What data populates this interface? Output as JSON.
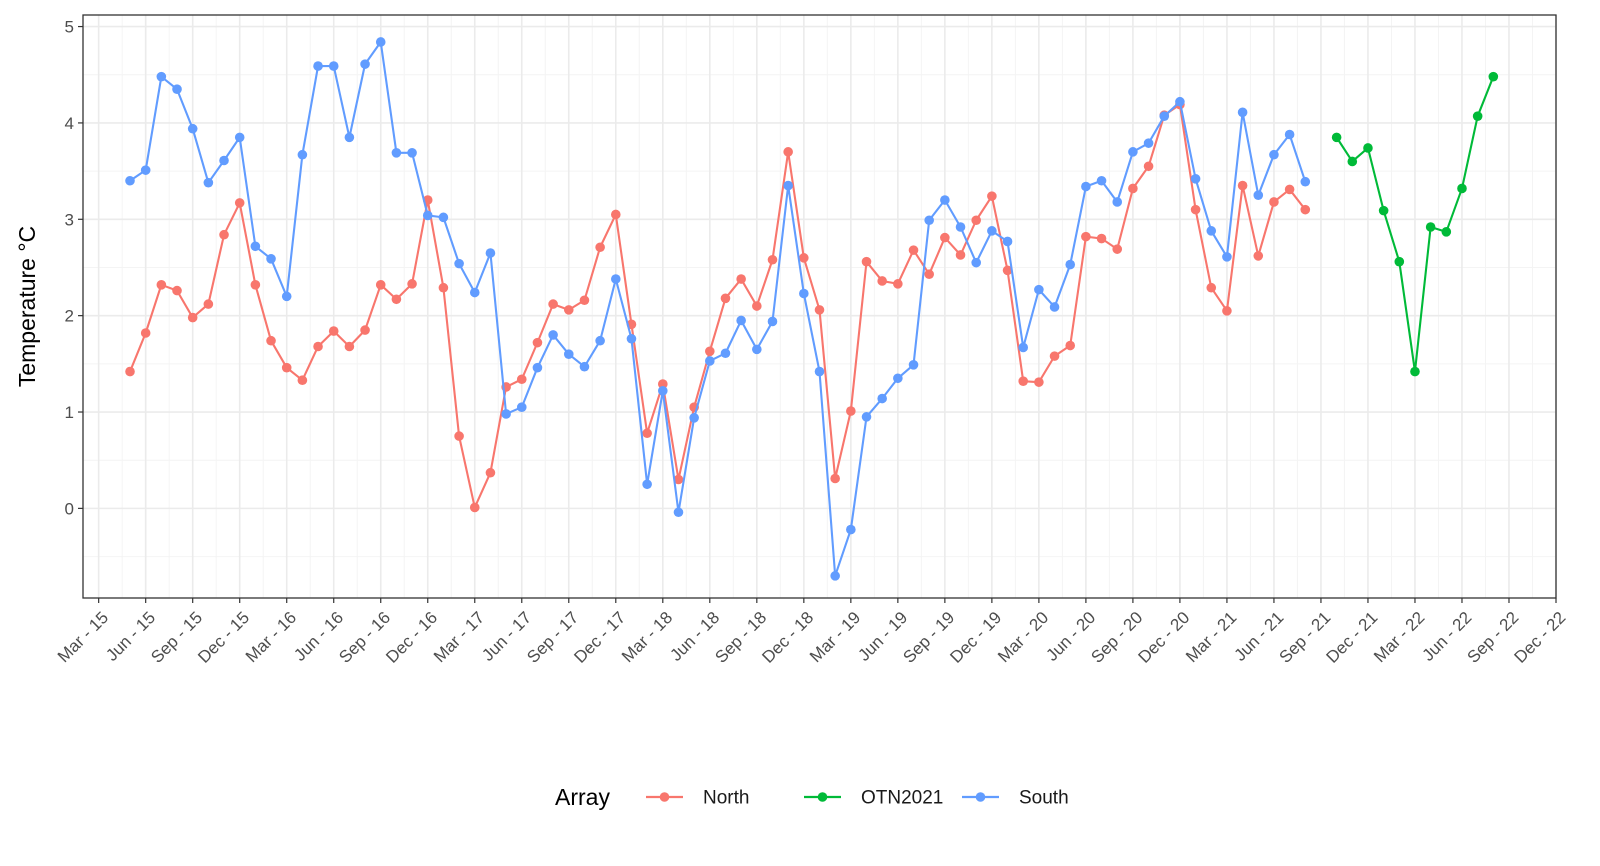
{
  "chart_data": {
    "type": "line",
    "ylabel": "Temperature °C",
    "ylim": [
      -0.93,
      5.12
    ],
    "y_ticks": [
      0,
      1,
      2,
      3,
      4,
      5
    ],
    "x_range": [
      "2015-02-15",
      "2022-12-15"
    ],
    "x_tick_labels": [
      "Mar - 15",
      "Jun - 15",
      "Sep - 15",
      "Dec - 15",
      "Mar - 16",
      "Jun - 16",
      "Sep - 16",
      "Dec - 16",
      "Mar - 17",
      "Jun - 17",
      "Sep - 17",
      "Dec - 17",
      "Mar - 18",
      "Jun - 18",
      "Sep - 18",
      "Dec - 18",
      "Mar - 19",
      "Jun - 19",
      "Sep - 19",
      "Dec - 19",
      "Mar - 20",
      "Jun - 20",
      "Sep - 20",
      "Dec - 20",
      "Mar - 21",
      "Jun - 21",
      "Sep - 21",
      "Dec - 21",
      "Mar - 22",
      "Jun - 22",
      "Sep - 22",
      "Dec - 22"
    ],
    "grid": true,
    "legend": {
      "title": "Array",
      "position": "bottom"
    },
    "series": [
      {
        "name": "North",
        "color": "#F8766D",
        "start": "2015-05",
        "values": [
          1.42,
          1.82,
          2.32,
          2.26,
          1.98,
          2.12,
          2.84,
          3.17,
          2.32,
          1.74,
          1.46,
          1.33,
          1.68,
          1.84,
          1.68,
          1.85,
          2.32,
          2.17,
          2.33,
          3.2,
          2.29,
          0.75,
          0.01,
          0.37,
          1.26,
          1.34,
          1.72,
          2.12,
          2.06,
          2.16,
          2.71,
          3.05,
          1.91,
          0.78,
          1.29,
          0.3,
          1.05,
          1.63,
          2.18,
          2.38,
          2.1,
          2.58,
          3.7,
          2.6,
          2.06,
          0.31,
          1.01,
          2.56,
          2.36,
          2.33,
          2.68,
          2.43,
          2.81,
          2.63,
          2.99,
          3.24,
          2.47,
          1.32,
          1.31,
          1.58,
          1.69,
          2.82,
          2.8,
          2.69,
          3.32,
          3.55,
          4.08,
          4.19,
          3.1,
          2.29,
          2.05,
          3.35,
          2.62,
          3.18,
          3.31,
          3.1
        ]
      },
      {
        "name": "OTN2021",
        "color": "#00BA38",
        "start": "2021-10",
        "values": [
          3.85,
          3.6,
          3.74,
          3.09,
          2.56,
          1.42,
          2.92,
          2.87,
          3.32,
          4.07,
          4.48
        ]
      },
      {
        "name": "South",
        "color": "#619CFF",
        "start": "2015-05",
        "values": [
          3.4,
          3.51,
          4.48,
          4.35,
          3.94,
          3.38,
          3.61,
          3.85,
          2.72,
          2.59,
          2.2,
          3.67,
          4.59,
          4.59,
          3.85,
          4.61,
          4.84,
          3.69,
          3.69,
          3.04,
          3.02,
          2.54,
          2.24,
          2.65,
          0.98,
          1.05,
          1.46,
          1.8,
          1.6,
          1.47,
          1.74,
          2.38,
          1.76,
          0.25,
          1.22,
          -0.04,
          0.94,
          1.53,
          1.61,
          1.95,
          1.65,
          1.94,
          3.35,
          2.23,
          1.42,
          -0.7,
          -0.22,
          0.95,
          1.14,
          1.35,
          1.49,
          2.99,
          3.2,
          2.92,
          2.55,
          2.88,
          2.77,
          1.67,
          2.27,
          2.09,
          2.53,
          3.34,
          3.4,
          3.18,
          3.7,
          3.79,
          4.07,
          4.22,
          3.42,
          2.88,
          2.61,
          4.11,
          3.25,
          3.67,
          3.88,
          3.39
        ]
      }
    ]
  },
  "colors": {
    "panel_border": "#333333",
    "grid_major": "#ebebeb",
    "grid_minor": "#f4f4f4",
    "tick": "#333333"
  }
}
